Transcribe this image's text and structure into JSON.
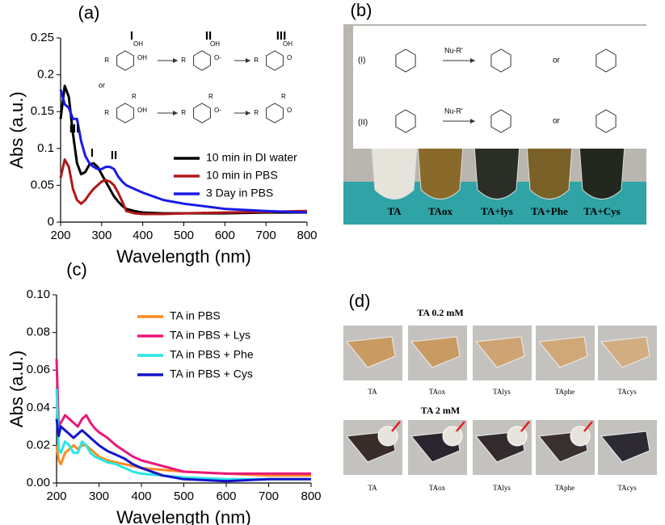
{
  "chart_data": [
    {
      "type": "line",
      "label": "(a)",
      "x_label": "Wavelength (nm)",
      "y_label": "Abs (a.u.)",
      "x": [
        200,
        210,
        220,
        230,
        240,
        250,
        260,
        270,
        280,
        290,
        300,
        310,
        320,
        330,
        340,
        350,
        360,
        380,
        400,
        450,
        500,
        600,
        700,
        800
      ],
      "series": [
        {
          "name": "10 min in DI water",
          "color": "#000000",
          "values": [
            0.14,
            0.185,
            0.17,
            0.12,
            0.08,
            0.065,
            0.068,
            0.078,
            0.08,
            0.075,
            0.065,
            0.055,
            0.045,
            0.035,
            0.028,
            0.022,
            0.018,
            0.015,
            0.013,
            0.012,
            0.012,
            0.012,
            0.013,
            0.013
          ]
        },
        {
          "name": "10 min in PBS",
          "color": "#b01818",
          "values": [
            0.06,
            0.085,
            0.075,
            0.045,
            0.03,
            0.025,
            0.03,
            0.038,
            0.045,
            0.05,
            0.055,
            0.057,
            0.055,
            0.05,
            0.04,
            0.028,
            0.015,
            0.012,
            0.011,
            0.011,
            0.012,
            0.013,
            0.014,
            0.015
          ]
        },
        {
          "name": "3 Day in PBS",
          "color": "#1a1ae6",
          "values": [
            0.18,
            0.16,
            0.155,
            0.14,
            0.14,
            0.11,
            0.09,
            0.08,
            0.075,
            0.072,
            0.072,
            0.075,
            0.075,
            0.072,
            0.062,
            0.055,
            0.05,
            0.045,
            0.04,
            0.03,
            0.025,
            0.018,
            0.015,
            0.013
          ]
        }
      ],
      "xlim": [
        200,
        800
      ],
      "xticks": [
        200,
        300,
        400,
        500,
        600,
        700,
        800
      ],
      "ylim": [
        0,
        0.25
      ],
      "yticks": [
        0,
        0.05,
        0.1,
        0.15,
        0.2,
        0.25
      ],
      "annotations": [
        "III",
        "I",
        "II"
      ],
      "legend": "right",
      "scheme": {
        "labels": [
          "I",
          "II",
          "III"
        ],
        "or": "or",
        "subs": [
          "R",
          "OH",
          "O-",
          "O"
        ]
      }
    },
    {
      "type": "line",
      "label": "(c)",
      "x_label": "Wavelength (nm)",
      "y_label": "Abs (a.u.)",
      "x": [
        200,
        205,
        210,
        220,
        230,
        240,
        250,
        260,
        270,
        280,
        290,
        300,
        320,
        340,
        360,
        380,
        400,
        450,
        500,
        600,
        700,
        800
      ],
      "series": [
        {
          "name": "TA in PBS",
          "color": "#ff8a1e",
          "values": [
            0.02,
            0.012,
            0.01,
            0.016,
            0.018,
            0.02,
            0.018,
            0.02,
            0.02,
            0.018,
            0.016,
            0.014,
            0.012,
            0.011,
            0.01,
            0.009,
            0.008,
            0.007,
            0.006,
            0.005,
            0.004,
            0.004
          ]
        },
        {
          "name": "TA in PBS + Lys",
          "color": "#e8197a",
          "values": [
            0.066,
            0.03,
            0.032,
            0.036,
            0.034,
            0.032,
            0.03,
            0.034,
            0.036,
            0.032,
            0.029,
            0.027,
            0.024,
            0.02,
            0.017,
            0.014,
            0.012,
            0.009,
            0.006,
            0.005,
            0.005,
            0.005
          ]
        },
        {
          "name": "TA in PBS + Phe",
          "color": "#29e6e6",
          "values": [
            0.05,
            0.018,
            0.016,
            0.022,
            0.02,
            0.016,
            0.016,
            0.022,
            0.02,
            0.016,
            0.014,
            0.013,
            0.011,
            0.01,
            0.008,
            0.006,
            0.005,
            0.004,
            0.003,
            0.002,
            0.002,
            0.002
          ]
        },
        {
          "name": "TA in PBS + Cys",
          "color": "#1414c8",
          "values": [
            0.034,
            0.025,
            0.03,
            0.028,
            0.026,
            0.024,
            0.026,
            0.028,
            0.026,
            0.024,
            0.022,
            0.02,
            0.017,
            0.015,
            0.013,
            0.01,
            0.008,
            0.004,
            0.002,
            0.001,
            0.002,
            0.002
          ]
        }
      ],
      "xlim": [
        200,
        800
      ],
      "xticks": [
        200,
        300,
        400,
        500,
        600,
        700,
        800
      ],
      "ylim": [
        0,
        0.1
      ],
      "yticks": [
        {
          "value": 0,
          "label": "0.00"
        },
        {
          "value": 0.02,
          "label": "0.02"
        },
        {
          "value": 0.04,
          "label": "0.04"
        },
        {
          "value": 0.06,
          "label": "0.06"
        },
        {
          "value": 0.08,
          "label": "0.08"
        },
        {
          "value": 0.1,
          "label": "0.10"
        }
      ],
      "legend": "upper right"
    }
  ],
  "panels": {
    "b": {
      "label": "(b)",
      "scheme": [
        "(I)",
        "(II)",
        "Nu-R'",
        "or"
      ],
      "samples": [
        "TA",
        "TAox",
        "TA+lys",
        "TA+Phe",
        "TA+Cys"
      ]
    },
    "d": {
      "label": "(d)",
      "rows": [
        {
          "title": "TA 0.2 mM",
          "samples": [
            "TA",
            "TAox",
            "TAlys",
            "TAphe",
            "TAcys"
          ]
        },
        {
          "title": "TA 2 mM",
          "samples": [
            "TA",
            "TAox",
            "TAlys",
            "TAphe",
            "TAcys"
          ]
        }
      ]
    }
  }
}
